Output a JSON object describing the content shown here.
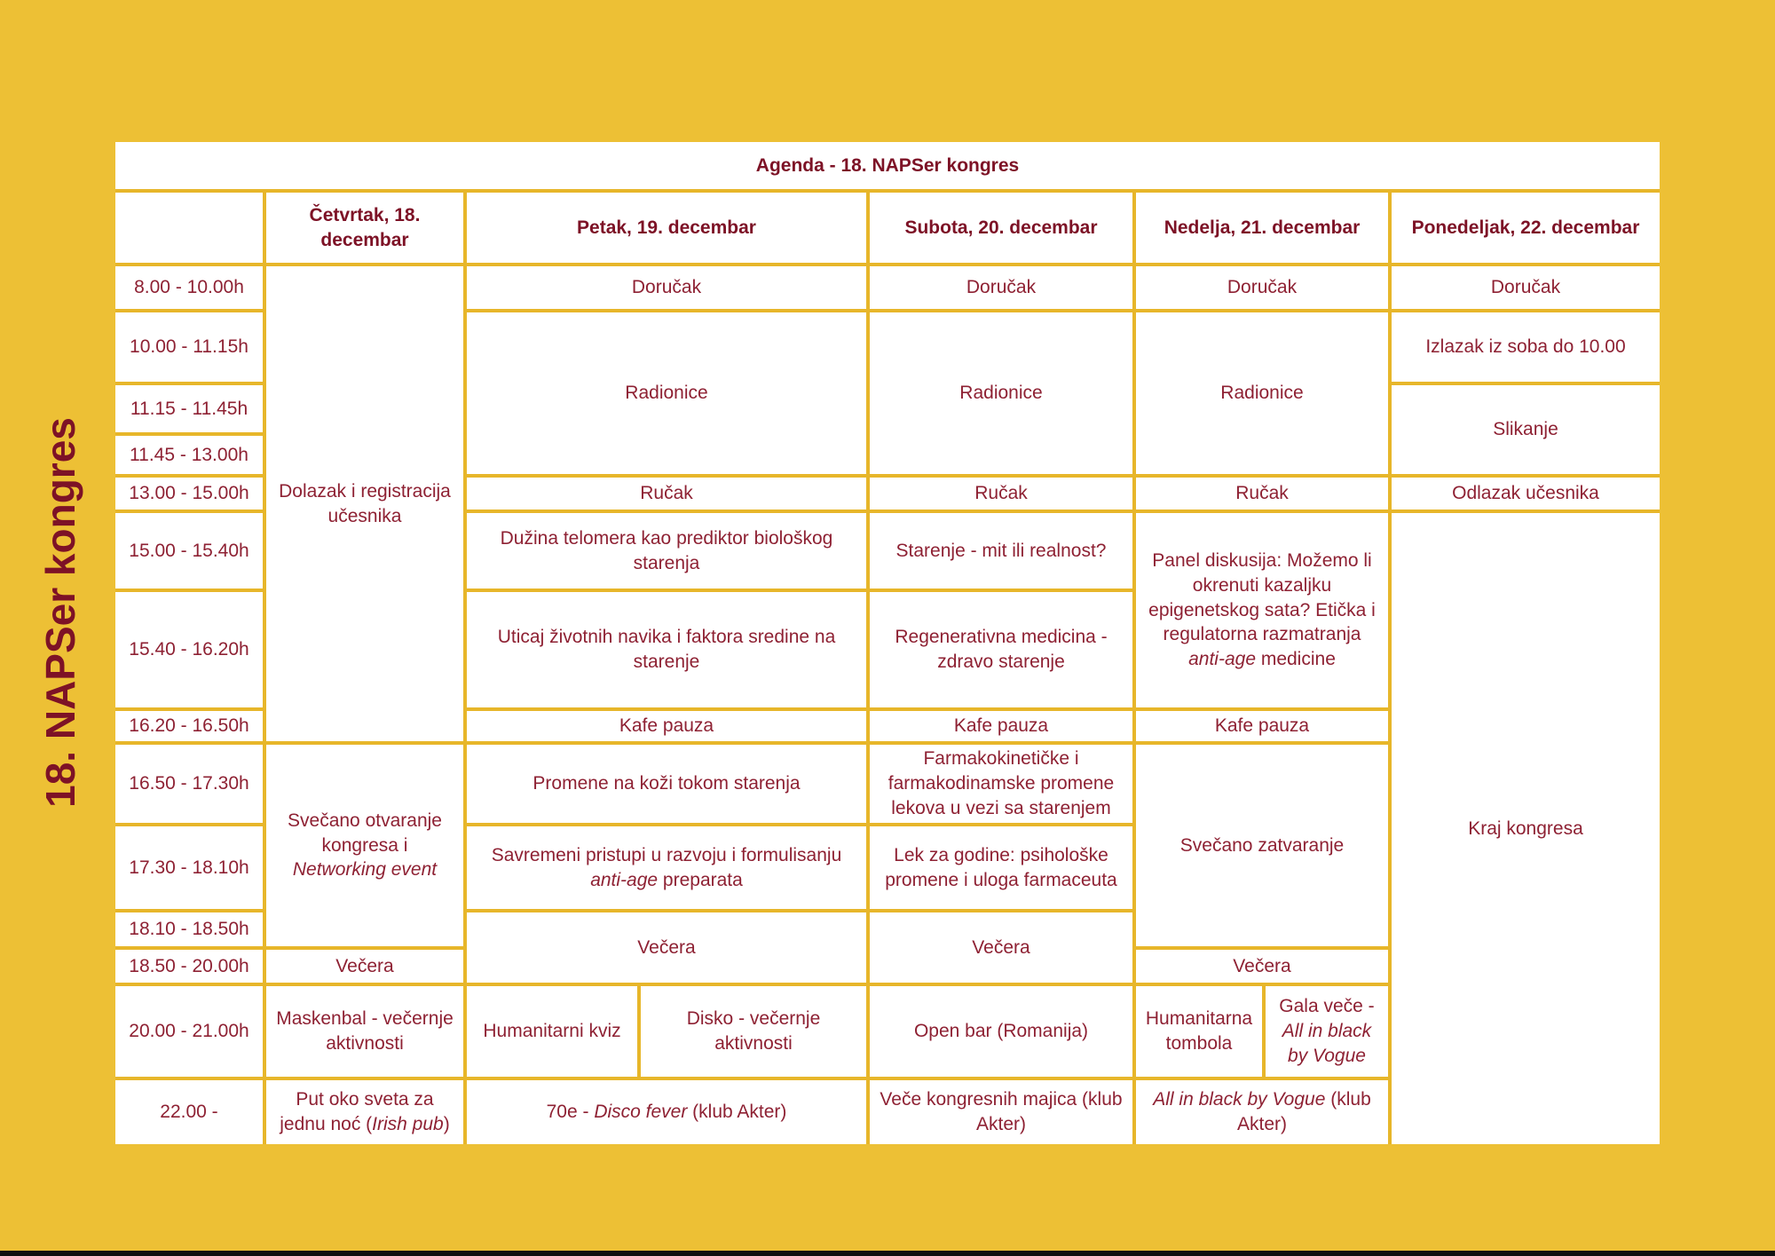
{
  "page": {
    "background_color": "#EDC035",
    "grid_line_color": "#E7B62A",
    "cell_background": "#FFFFFF",
    "body_text_color": "#8E2133",
    "header_text_color": "#7D1226"
  },
  "side_title": "18. NAPSer kongres",
  "agenda_title": "Agenda - 18. NAPSer kongres",
  "schedule": {
    "cells": [
      {
        "type": "corner",
        "col": 1,
        "row": 2,
        "seg": []
      },
      {
        "type": "day",
        "col": 2,
        "row": 2,
        "seg": [
          {
            "t": "Četvrtak, 18. decembar"
          }
        ]
      },
      {
        "type": "day",
        "col": 3,
        "cs": 2,
        "row": 2,
        "seg": [
          {
            "t": "Petak, 19. decembar"
          }
        ]
      },
      {
        "type": "day",
        "col": 5,
        "row": 2,
        "seg": [
          {
            "t": "Subota, 20. decembar"
          }
        ]
      },
      {
        "type": "day",
        "col": 6,
        "cs": 2,
        "row": 2,
        "seg": [
          {
            "t": "Nedelja, 21. decembar"
          }
        ]
      },
      {
        "type": "day",
        "col": 8,
        "row": 2,
        "seg": [
          {
            "t": "Ponedeljak, 22. decembar"
          }
        ]
      },
      {
        "type": "time",
        "col": 1,
        "row": 3,
        "seg": [
          {
            "t": "8.00 - 10.00h"
          }
        ]
      },
      {
        "type": "time",
        "col": 1,
        "row": 4,
        "seg": [
          {
            "t": "10.00 - 11.15h"
          }
        ]
      },
      {
        "type": "time",
        "col": 1,
        "row": 5,
        "seg": [
          {
            "t": "11.15 - 11.45h"
          }
        ]
      },
      {
        "type": "time",
        "col": 1,
        "row": 6,
        "seg": [
          {
            "t": "11.45 - 13.00h"
          }
        ]
      },
      {
        "type": "time",
        "col": 1,
        "row": 7,
        "seg": [
          {
            "t": "13.00 - 15.00h"
          }
        ]
      },
      {
        "type": "time",
        "col": 1,
        "row": 8,
        "seg": [
          {
            "t": "15.00 - 15.40h"
          }
        ]
      },
      {
        "type": "time",
        "col": 1,
        "row": 9,
        "seg": [
          {
            "t": "15.40 - 16.20h"
          }
        ]
      },
      {
        "type": "time",
        "col": 1,
        "row": 10,
        "seg": [
          {
            "t": "16.20 - 16.50h"
          }
        ]
      },
      {
        "type": "time",
        "col": 1,
        "row": 11,
        "seg": [
          {
            "t": "16.50 - 17.30h"
          }
        ]
      },
      {
        "type": "time",
        "col": 1,
        "row": 12,
        "seg": [
          {
            "t": "17.30 - 18.10h"
          }
        ]
      },
      {
        "type": "time",
        "col": 1,
        "row": 13,
        "seg": [
          {
            "t": "18.10 - 18.50h"
          }
        ]
      },
      {
        "type": "time",
        "col": 1,
        "row": 14,
        "seg": [
          {
            "t": "18.50 - 20.00h"
          }
        ]
      },
      {
        "type": "time",
        "col": 1,
        "row": 15,
        "seg": [
          {
            "t": "20.00 - 21.00h"
          }
        ]
      },
      {
        "type": "time",
        "col": 1,
        "row": 16,
        "seg": [
          {
            "t": "22.00 -"
          }
        ]
      },
      {
        "type": "event",
        "col": 2,
        "row": 3,
        "rs": 8,
        "seg": [
          {
            "t": "Dolazak i registracija učesnika"
          }
        ]
      },
      {
        "type": "event",
        "col": 2,
        "row": 11,
        "rs": 3,
        "seg": [
          {
            "t": "Svečano otvaranje kongresa i "
          },
          {
            "t": "Networking event",
            "i": true
          }
        ]
      },
      {
        "type": "event",
        "col": 2,
        "row": 14,
        "seg": [
          {
            "t": "Večera"
          }
        ]
      },
      {
        "type": "event",
        "col": 2,
        "row": 15,
        "seg": [
          {
            "t": "Maskenbal - večernje aktivnosti"
          }
        ]
      },
      {
        "type": "event",
        "col": 2,
        "row": 16,
        "seg": [
          {
            "t": "Put oko sveta za jednu noć ("
          },
          {
            "t": "Irish pub",
            "i": true
          },
          {
            "t": ")"
          }
        ]
      },
      {
        "type": "event",
        "col": 3,
        "cs": 2,
        "row": 3,
        "seg": [
          {
            "t": "Doručak"
          }
        ]
      },
      {
        "type": "event",
        "col": 3,
        "cs": 2,
        "row": 4,
        "rs": 3,
        "seg": [
          {
            "t": "Radionice"
          }
        ]
      },
      {
        "type": "event",
        "col": 3,
        "cs": 2,
        "row": 7,
        "seg": [
          {
            "t": "Ručak"
          }
        ]
      },
      {
        "type": "event",
        "col": 3,
        "cs": 2,
        "row": 8,
        "seg": [
          {
            "t": "Dužina telomera kao prediktor biološkog starenja"
          }
        ]
      },
      {
        "type": "event",
        "col": 3,
        "cs": 2,
        "row": 9,
        "seg": [
          {
            "t": "Uticaj životnih navika i faktora sredine na starenje"
          }
        ]
      },
      {
        "type": "event",
        "col": 3,
        "cs": 2,
        "row": 10,
        "seg": [
          {
            "t": "Kafe pauza"
          }
        ]
      },
      {
        "type": "event",
        "col": 3,
        "cs": 2,
        "row": 11,
        "seg": [
          {
            "t": "Promene na koži tokom starenja"
          }
        ]
      },
      {
        "type": "event",
        "col": 3,
        "cs": 2,
        "row": 12,
        "seg": [
          {
            "t": "Savremeni pristupi u razvoju i formulisanju "
          },
          {
            "t": "anti-age",
            "i": true
          },
          {
            "t": " preparata"
          }
        ]
      },
      {
        "type": "event",
        "col": 3,
        "cs": 2,
        "row": 13,
        "rs": 2,
        "seg": [
          {
            "t": "Večera"
          }
        ]
      },
      {
        "type": "event",
        "col": 3,
        "row": 15,
        "seg": [
          {
            "t": "Humanitarni kviz"
          }
        ]
      },
      {
        "type": "event",
        "col": 4,
        "row": 15,
        "seg": [
          {
            "t": "Disko - večernje aktivnosti"
          }
        ]
      },
      {
        "type": "event",
        "col": 3,
        "cs": 2,
        "row": 16,
        "seg": [
          {
            "t": "70e - "
          },
          {
            "t": "Disco fever",
            "i": true
          },
          {
            "t": " (klub Akter)"
          }
        ]
      },
      {
        "type": "event",
        "col": 5,
        "row": 3,
        "seg": [
          {
            "t": "Doručak"
          }
        ]
      },
      {
        "type": "event",
        "col": 5,
        "row": 4,
        "rs": 3,
        "seg": [
          {
            "t": "Radionice"
          }
        ]
      },
      {
        "type": "event",
        "col": 5,
        "row": 7,
        "seg": [
          {
            "t": "Ručak"
          }
        ]
      },
      {
        "type": "event",
        "col": 5,
        "row": 8,
        "seg": [
          {
            "t": "Starenje - mit ili realnost?"
          }
        ]
      },
      {
        "type": "event",
        "col": 5,
        "row": 9,
        "seg": [
          {
            "t": "Regenerativna medicina - zdravo starenje"
          }
        ]
      },
      {
        "type": "event",
        "col": 5,
        "row": 10,
        "seg": [
          {
            "t": "Kafe pauza"
          }
        ]
      },
      {
        "type": "event",
        "col": 5,
        "row": 11,
        "seg": [
          {
            "t": "Farmakokinetičke i farmakodinamske promene lekova u vezi sa starenjem"
          }
        ]
      },
      {
        "type": "event",
        "col": 5,
        "row": 12,
        "seg": [
          {
            "t": "Lek za godine: psihološke promene i uloga farmaceuta"
          }
        ]
      },
      {
        "type": "event",
        "col": 5,
        "row": 13,
        "rs": 2,
        "seg": [
          {
            "t": "Večera"
          }
        ]
      },
      {
        "type": "event",
        "col": 5,
        "row": 15,
        "seg": [
          {
            "t": "Open bar (Romanija)"
          }
        ]
      },
      {
        "type": "event",
        "col": 5,
        "row": 16,
        "seg": [
          {
            "t": "Veče kongresnih majica (klub Akter)"
          }
        ]
      },
      {
        "type": "event",
        "col": 6,
        "cs": 2,
        "row": 3,
        "seg": [
          {
            "t": "Doručak"
          }
        ]
      },
      {
        "type": "event",
        "col": 6,
        "cs": 2,
        "row": 4,
        "rs": 3,
        "seg": [
          {
            "t": "Radionice"
          }
        ]
      },
      {
        "type": "event",
        "col": 6,
        "cs": 2,
        "row": 7,
        "seg": [
          {
            "t": "Ručak"
          }
        ]
      },
      {
        "type": "event",
        "col": 6,
        "cs": 2,
        "row": 8,
        "rs": 2,
        "seg": [
          {
            "t": "Panel diskusija: Možemo li okrenuti kazaljku epigenetskog sata? Etička i regulatorna razmatranja "
          },
          {
            "t": "anti-age",
            "i": true
          },
          {
            "t": " medicine"
          }
        ]
      },
      {
        "type": "event",
        "col": 6,
        "cs": 2,
        "row": 10,
        "seg": [
          {
            "t": "Kafe pauza"
          }
        ]
      },
      {
        "type": "event",
        "col": 6,
        "cs": 2,
        "row": 11,
        "rs": 3,
        "seg": [
          {
            "t": "Svečano zatvaranje"
          }
        ]
      },
      {
        "type": "event",
        "col": 6,
        "cs": 2,
        "row": 14,
        "seg": [
          {
            "t": "Večera"
          }
        ]
      },
      {
        "type": "event",
        "col": 6,
        "row": 15,
        "seg": [
          {
            "t": "Humanitarna tombola"
          }
        ]
      },
      {
        "type": "event",
        "col": 7,
        "row": 15,
        "seg": [
          {
            "t": "Gala veče - "
          },
          {
            "t": "All in black by Vogue",
            "i": true
          }
        ]
      },
      {
        "type": "event",
        "col": 6,
        "cs": 2,
        "row": 16,
        "seg": [
          {
            "t": "All in black by Vogue",
            "i": true
          },
          {
            "t": " (klub Akter)"
          }
        ]
      },
      {
        "type": "event",
        "col": 8,
        "row": 3,
        "seg": [
          {
            "t": "Doručak"
          }
        ]
      },
      {
        "type": "event",
        "col": 8,
        "row": 4,
        "seg": [
          {
            "t": "Izlazak iz soba do 10.00"
          }
        ]
      },
      {
        "type": "event",
        "col": 8,
        "row": 5,
        "rs": 2,
        "seg": [
          {
            "t": "Slikanje"
          }
        ]
      },
      {
        "type": "event",
        "col": 8,
        "row": 7,
        "seg": [
          {
            "t": "Odlazak učesnika"
          }
        ]
      },
      {
        "type": "event",
        "col": 8,
        "row": 8,
        "rs": 9,
        "seg": [
          {
            "t": "Kraj kongresa"
          }
        ]
      }
    ]
  }
}
